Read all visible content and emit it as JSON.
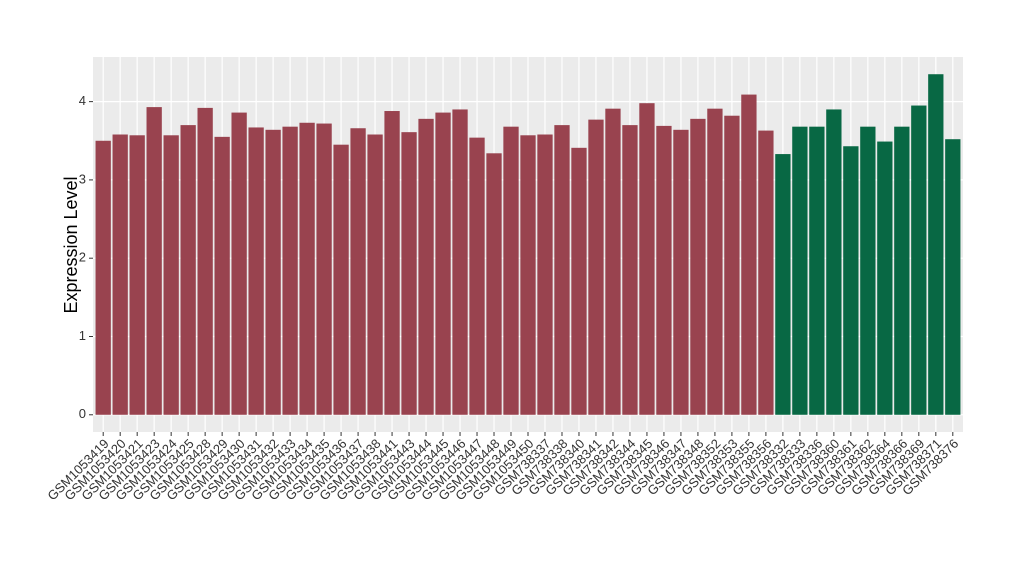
{
  "chart_data": {
    "type": "bar",
    "y_label": "Expression Level",
    "categories": [
      "GSM1053419",
      "GSM1053420",
      "GSM1053421",
      "GSM1053423",
      "GSM1053424",
      "GSM1053425",
      "GSM1053428",
      "GSM1053429",
      "GSM1053430",
      "GSM1053431",
      "GSM1053432",
      "GSM1053433",
      "GSM1053434",
      "GSM1053435",
      "GSM1053436",
      "GSM1053437",
      "GSM1053438",
      "GSM1053441",
      "GSM1053443",
      "GSM1053444",
      "GSM1053445",
      "GSM1053446",
      "GSM1053447",
      "GSM1053448",
      "GSM1053449",
      "GSM1053450",
      "GSM738337",
      "GSM738338",
      "GSM738340",
      "GSM738341",
      "GSM738342",
      "GSM738344",
      "GSM738345",
      "GSM738346",
      "GSM738347",
      "GSM738348",
      "GSM738352",
      "GSM738353",
      "GSM738355",
      "GSM738356",
      "GSM738332",
      "GSM738333",
      "GSM738336",
      "GSM738360",
      "GSM738361",
      "GSM738362",
      "GSM738364",
      "GSM738366",
      "GSM738369",
      "GSM738371",
      "GSM738376"
    ],
    "values": [
      3.5,
      3.58,
      3.57,
      3.93,
      3.57,
      3.7,
      3.92,
      3.55,
      3.86,
      3.67,
      3.64,
      3.68,
      3.73,
      3.72,
      3.45,
      3.66,
      3.58,
      3.88,
      3.61,
      3.78,
      3.86,
      3.9,
      3.54,
      3.34,
      3.68,
      3.57,
      3.58,
      3.7,
      3.41,
      3.77,
      3.91,
      3.7,
      3.98,
      3.69,
      3.64,
      3.78,
      3.91,
      3.82,
      4.09,
      3.63,
      3.33,
      3.68,
      3.68,
      3.9,
      3.43,
      3.68,
      3.49,
      3.68,
      3.95,
      4.35,
      3.52
    ],
    "colors": [
      "#99434f",
      "#99434f",
      "#99434f",
      "#99434f",
      "#99434f",
      "#99434f",
      "#99434f",
      "#99434f",
      "#99434f",
      "#99434f",
      "#99434f",
      "#99434f",
      "#99434f",
      "#99434f",
      "#99434f",
      "#99434f",
      "#99434f",
      "#99434f",
      "#99434f",
      "#99434f",
      "#99434f",
      "#99434f",
      "#99434f",
      "#99434f",
      "#99434f",
      "#99434f",
      "#99434f",
      "#99434f",
      "#99434f",
      "#99434f",
      "#99434f",
      "#99434f",
      "#99434f",
      "#99434f",
      "#99434f",
      "#99434f",
      "#99434f",
      "#99434f",
      "#99434f",
      "#99434f",
      "#086844",
      "#086844",
      "#086844",
      "#086844",
      "#086844",
      "#086844",
      "#086844",
      "#086844",
      "#086844",
      "#086844",
      "#086844"
    ],
    "ylim": [
      -0.22,
      4.57
    ],
    "yticks": [
      0,
      1,
      2,
      3,
      4
    ],
    "grid": true
  }
}
